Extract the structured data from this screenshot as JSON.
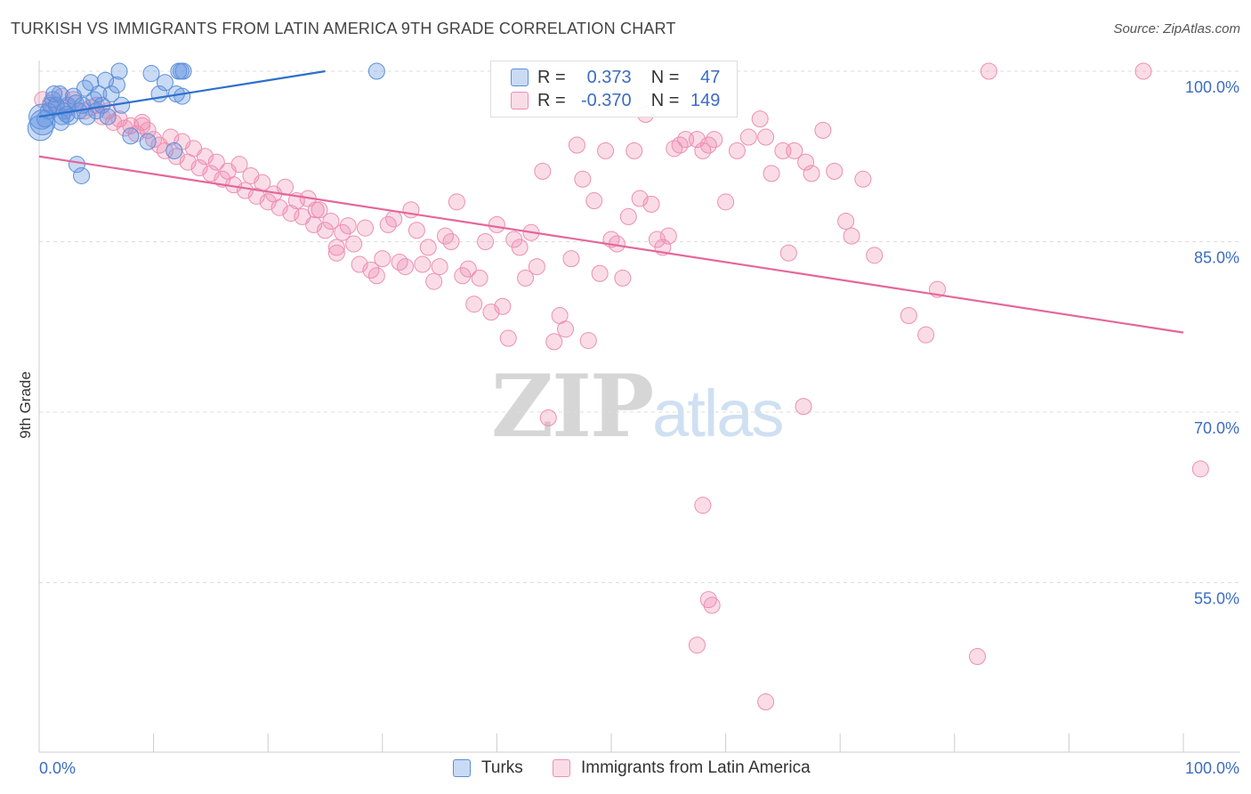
{
  "title": "TURKISH VS IMMIGRANTS FROM LATIN AMERICA 9TH GRADE CORRELATION CHART",
  "source": "Source: ZipAtlas.com",
  "watermark": {
    "zip": "ZIP",
    "atlas": "atlas"
  },
  "stats": [
    {
      "r_label": "R =",
      "r_value": "0.373",
      "n_label": "N =",
      "n_value": "47",
      "color": "#6fa0e8"
    },
    {
      "r_label": "R =",
      "r_value": "-0.370",
      "n_label": "N =",
      "n_value": "149",
      "color": "#f19ab5"
    }
  ],
  "legend": [
    {
      "label": "Turks",
      "color": "#6fa0e8"
    },
    {
      "label": "Immigrants from Latin America",
      "color": "#f19ab5"
    }
  ],
  "colors": {
    "turks_fill": "rgba(100,150,225,0.35)",
    "turks_stroke": "#5b8fd8",
    "turks_line": "#2e6fcc",
    "latam_fill": "rgba(240,140,175,0.30)",
    "latam_stroke": "#ee8fb0",
    "latam_line": "#e4679a",
    "axis_text": "#3b6cc4",
    "grid": "#dddddd"
  },
  "chart_data": {
    "type": "scatter",
    "title": "TURKISH VS IMMIGRANTS FROM LATIN AMERICA 9TH GRADE CORRELATION CHART",
    "xlabel": "",
    "ylabel": "9th Grade",
    "xlim": [
      0,
      100
    ],
    "ylim": [
      40,
      101
    ],
    "x_tick_labels": [
      "0.0%",
      "100.0%"
    ],
    "y_ticks": [
      55,
      70,
      85,
      100
    ],
    "y_tick_labels": [
      "55.0%",
      "70.0%",
      "85.0%",
      "100.0%"
    ],
    "grid": true,
    "legend_position": "bottom",
    "series": [
      {
        "name": "Turks",
        "trendline": {
          "x": [
            0,
            25
          ],
          "y": [
            96.0,
            100
          ]
        },
        "points": [
          [
            0.1,
            95.0
          ],
          [
            0.2,
            96.0
          ],
          [
            0.5,
            95.8
          ],
          [
            0.8,
            96.5
          ],
          [
            1.0,
            97.0
          ],
          [
            1.2,
            97.5
          ],
          [
            1.5,
            97.0
          ],
          [
            1.8,
            98.0
          ],
          [
            2.0,
            96.0
          ],
          [
            2.2,
            96.5
          ],
          [
            2.5,
            97.0
          ],
          [
            2.7,
            96.0
          ],
          [
            3.0,
            97.8
          ],
          [
            3.2,
            97.2
          ],
          [
            3.5,
            96.5
          ],
          [
            3.8,
            97.0
          ],
          [
            4.0,
            98.5
          ],
          [
            4.2,
            96.0
          ],
          [
            4.5,
            99.0
          ],
          [
            4.8,
            97.5
          ],
          [
            5.0,
            96.5
          ],
          [
            5.2,
            98.0
          ],
          [
            5.5,
            97.0
          ],
          [
            6.0,
            96.0
          ],
          [
            6.3,
            98.0
          ],
          [
            6.8,
            98.8
          ],
          [
            7.2,
            97.0
          ],
          [
            7.0,
            100.0
          ],
          [
            8.0,
            94.3
          ],
          [
            9.5,
            93.8
          ],
          [
            9.8,
            99.8
          ],
          [
            10.5,
            98.0
          ],
          [
            11.0,
            99.0
          ],
          [
            11.8,
            93.0
          ],
          [
            12.0,
            98.0
          ],
          [
            12.5,
            97.8
          ],
          [
            12.2,
            100.0
          ],
          [
            12.4,
            100.0
          ],
          [
            12.6,
            100.0
          ],
          [
            3.3,
            91.8
          ],
          [
            3.7,
            90.8
          ],
          [
            29.5,
            100.0
          ],
          [
            1.9,
            95.5
          ],
          [
            2.4,
            96.2
          ],
          [
            0.3,
            95.5
          ],
          [
            5.8,
            99.2
          ],
          [
            1.3,
            98.0
          ]
        ]
      },
      {
        "name": "Immigrants from Latin America",
        "trendline": {
          "x": [
            0,
            100
          ],
          "y": [
            92.5,
            77.0
          ]
        },
        "points": [
          [
            0.3,
            97.5
          ],
          [
            1.0,
            97.2
          ],
          [
            1.5,
            97.0
          ],
          [
            2.0,
            97.8
          ],
          [
            2.5,
            96.8
          ],
          [
            3.0,
            97.5
          ],
          [
            4.0,
            96.5
          ],
          [
            4.5,
            96.8
          ],
          [
            5.0,
            97.0
          ],
          [
            5.5,
            96.0
          ],
          [
            6.0,
            96.5
          ],
          [
            6.5,
            95.5
          ],
          [
            7.0,
            95.8
          ],
          [
            7.5,
            95.0
          ],
          [
            8.0,
            95.2
          ],
          [
            8.5,
            94.5
          ],
          [
            9.0,
            95.5
          ],
          [
            9.5,
            94.8
          ],
          [
            10.0,
            94.0
          ],
          [
            10.5,
            93.5
          ],
          [
            11.0,
            93.0
          ],
          [
            11.5,
            94.2
          ],
          [
            12.0,
            92.5
          ],
          [
            12.5,
            93.8
          ],
          [
            13.0,
            92.0
          ],
          [
            13.5,
            93.2
          ],
          [
            14.0,
            91.5
          ],
          [
            14.5,
            92.5
          ],
          [
            15.0,
            91.0
          ],
          [
            15.5,
            92.0
          ],
          [
            16.0,
            90.5
          ],
          [
            16.5,
            91.2
          ],
          [
            17.0,
            90.0
          ],
          [
            17.5,
            91.8
          ],
          [
            18.0,
            89.5
          ],
          [
            18.5,
            90.8
          ],
          [
            19.0,
            89.0
          ],
          [
            19.5,
            90.2
          ],
          [
            20.0,
            88.5
          ],
          [
            20.5,
            89.2
          ],
          [
            21.0,
            88.0
          ],
          [
            21.5,
            89.8
          ],
          [
            22.0,
            87.5
          ],
          [
            22.5,
            88.6
          ],
          [
            23.0,
            87.2
          ],
          [
            23.5,
            88.8
          ],
          [
            24.0,
            86.5
          ],
          [
            24.5,
            87.8
          ],
          [
            25.0,
            86.0
          ],
          [
            25.5,
            86.8
          ],
          [
            26.0,
            84.5
          ],
          [
            26.5,
            85.8
          ],
          [
            27.0,
            86.4
          ],
          [
            27.5,
            84.8
          ],
          [
            28.0,
            83.0
          ],
          [
            28.5,
            86.2
          ],
          [
            29.0,
            82.5
          ],
          [
            29.5,
            82.0
          ],
          [
            30.0,
            83.5
          ],
          [
            30.5,
            86.5
          ],
          [
            31.0,
            87.0
          ],
          [
            31.5,
            83.2
          ],
          [
            32.0,
            82.8
          ],
          [
            32.5,
            87.8
          ],
          [
            33.0,
            86.0
          ],
          [
            33.5,
            83.0
          ],
          [
            34.0,
            84.5
          ],
          [
            34.5,
            81.5
          ],
          [
            35.0,
            82.8
          ],
          [
            35.5,
            85.5
          ],
          [
            36.0,
            85.0
          ],
          [
            36.5,
            88.5
          ],
          [
            37.0,
            82.0
          ],
          [
            37.5,
            82.6
          ],
          [
            38.0,
            79.5
          ],
          [
            38.5,
            81.8
          ],
          [
            39.0,
            85.0
          ],
          [
            39.5,
            78.8
          ],
          [
            40.0,
            86.5
          ],
          [
            40.5,
            79.3
          ],
          [
            41.0,
            76.5
          ],
          [
            41.5,
            85.2
          ],
          [
            42.0,
            84.5
          ],
          [
            42.5,
            81.8
          ],
          [
            43.0,
            85.8
          ],
          [
            43.5,
            82.8
          ],
          [
            44.0,
            91.2
          ],
          [
            45.0,
            76.2
          ],
          [
            45.5,
            78.5
          ],
          [
            46.0,
            77.3
          ],
          [
            46.5,
            83.5
          ],
          [
            47.0,
            93.5
          ],
          [
            47.5,
            90.5
          ],
          [
            48.0,
            76.3
          ],
          [
            48.5,
            88.6
          ],
          [
            49.0,
            82.2
          ],
          [
            49.5,
            93.0
          ],
          [
            50.0,
            85.2
          ],
          [
            50.5,
            84.8
          ],
          [
            51.0,
            81.8
          ],
          [
            51.5,
            87.2
          ],
          [
            52.0,
            93.0
          ],
          [
            52.5,
            88.8
          ],
          [
            53.0,
            96.2
          ],
          [
            53.5,
            88.3
          ],
          [
            54.0,
            85.2
          ],
          [
            54.5,
            84.5
          ],
          [
            55.0,
            85.5
          ],
          [
            55.5,
            93.2
          ],
          [
            56.0,
            93.5
          ],
          [
            56.5,
            94.0
          ],
          [
            57.5,
            94.0
          ],
          [
            58.0,
            93.0
          ],
          [
            58.5,
            93.5
          ],
          [
            59.0,
            94.0
          ],
          [
            60.0,
            88.5
          ],
          [
            61.0,
            93.0
          ],
          [
            62.0,
            94.2
          ],
          [
            63.0,
            95.8
          ],
          [
            63.5,
            94.2
          ],
          [
            64.0,
            91.0
          ],
          [
            65.0,
            93.0
          ],
          [
            65.5,
            84.0
          ],
          [
            66.0,
            93.0
          ],
          [
            67.0,
            92.0
          ],
          [
            67.5,
            91.0
          ],
          [
            68.5,
            94.8
          ],
          [
            69.5,
            91.2
          ],
          [
            70.5,
            86.8
          ],
          [
            71.0,
            85.5
          ],
          [
            72.0,
            90.5
          ],
          [
            73.0,
            83.8
          ],
          [
            76.0,
            78.5
          ],
          [
            77.5,
            76.8
          ],
          [
            78.5,
            80.8
          ],
          [
            83.0,
            100.0
          ],
          [
            96.5,
            100.0
          ],
          [
            101.5,
            65.0
          ],
          [
            26.0,
            84.0
          ],
          [
            9.0,
            95.2
          ],
          [
            66.8,
            70.5
          ],
          [
            24.2,
            87.8
          ],
          [
            58.0,
            61.8
          ],
          [
            58.5,
            53.5
          ],
          [
            58.8,
            53.0
          ],
          [
            57.5,
            49.5
          ],
          [
            82.0,
            48.5
          ],
          [
            63.5,
            44.5
          ],
          [
            44.5,
            69.5
          ]
        ]
      }
    ]
  }
}
